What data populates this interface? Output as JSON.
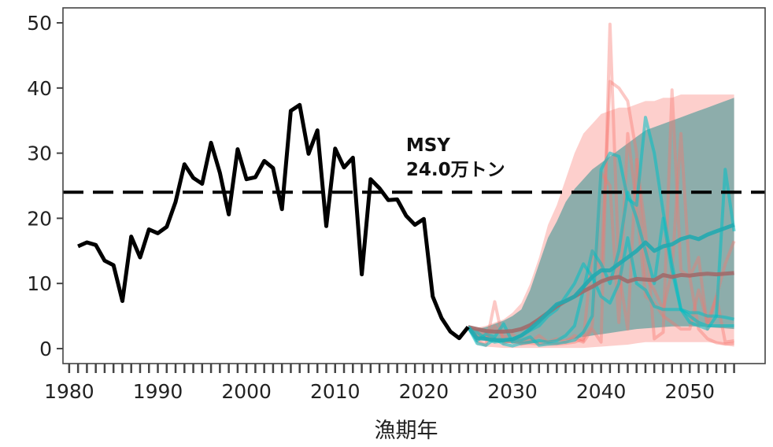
{
  "chart_data": {
    "type": "line",
    "title": "",
    "xlabel": "漁期年",
    "ylabel": "",
    "xlim": [
      1979.3,
      2058.5
    ],
    "ylim": [
      -2.3,
      52.3
    ],
    "xticks": [
      1980,
      1990,
      2000,
      2010,
      2020,
      2030,
      2040,
      2050
    ],
    "yticks": [
      0,
      10,
      20,
      30,
      40,
      50
    ],
    "grid": false,
    "msy": {
      "value": 24.0,
      "label_line1": "MSY",
      "label_line2": "24.0万トン",
      "color": "#000000"
    },
    "colors": {
      "historical": "#000000",
      "pink": "#f8766d",
      "teal": "#00bfc4",
      "band": "#5c9e9c",
      "brown": "#a06a6a",
      "teal_median": "#22aab0"
    },
    "historical": {
      "x": [
        1981,
        1982,
        1983,
        1984,
        1985,
        1986,
        1987,
        1988,
        1989,
        1990,
        1991,
        1992,
        1993,
        1994,
        1995,
        1996,
        1997,
        1998,
        1999,
        2000,
        2001,
        2002,
        2003,
        2004,
        2005,
        2006,
        2007,
        2008,
        2009,
        2010,
        2011,
        2012,
        2013,
        2014,
        2015,
        2016,
        2017,
        2018,
        2019,
        2020,
        2021,
        2022,
        2023,
        2024,
        2025
      ],
      "y": [
        15.7,
        16.3,
        15.9,
        13.5,
        12.8,
        7.3,
        17.2,
        14.0,
        18.3,
        17.7,
        18.7,
        22.5,
        28.3,
        26.2,
        25.3,
        31.6,
        27.0,
        20.6,
        30.6,
        26.0,
        26.3,
        28.8,
        27.7,
        21.4,
        36.5,
        37.4,
        29.9,
        33.5,
        18.8,
        30.7,
        27.8,
        29.3,
        11.4,
        26.0,
        24.6,
        22.8,
        22.9,
        20.4,
        19.0,
        19.9,
        8.0,
        4.7,
        2.6,
        1.6,
        3.3
      ]
    },
    "projection_x": [
      2025,
      2026,
      2027,
      2028,
      2029,
      2030,
      2031,
      2032,
      2033,
      2034,
      2035,
      2036,
      2037,
      2038,
      2039,
      2040,
      2041,
      2042,
      2043,
      2044,
      2045,
      2046,
      2047,
      2048,
      2049,
      2050,
      2051,
      2052,
      2053,
      2054,
      2055
    ],
    "pink_band": {
      "upper": [
        3.3,
        3.2,
        3.5,
        4.0,
        4.5,
        5.5,
        7.0,
        10.0,
        14.0,
        19.0,
        22.0,
        26.0,
        30.0,
        33.0,
        34.5,
        36.0,
        36.5,
        37.0,
        37.0,
        37.5,
        38.0,
        38.0,
        38.5,
        38.5,
        39.0,
        39.0,
        39.0,
        39.0,
        39.0,
        39.0,
        39.0
      ],
      "lower": [
        3.3,
        0.5,
        0.3,
        0.2,
        0.1,
        0.1,
        0.1,
        0.1,
        0.1,
        0.1,
        0.1,
        0.1,
        0.1,
        0.1,
        0.2,
        0.3,
        0.4,
        0.5,
        0.6,
        0.8,
        1.0,
        1.0,
        1.0,
        1.0,
        1.0,
        1.0,
        1.0,
        1.0,
        0.8,
        0.5,
        0.3
      ]
    },
    "teal_band": {
      "upper": [
        3.3,
        3.0,
        3.3,
        3.8,
        4.3,
        5.0,
        6.0,
        9.0,
        13.0,
        17.0,
        19.5,
        22.5,
        24.5,
        26.0,
        27.5,
        28.5,
        29.5,
        30.5,
        31.5,
        32.5,
        33.5,
        34.0,
        34.5,
        35.0,
        35.5,
        36.0,
        36.5,
        37.0,
        37.5,
        38.0,
        38.5
      ],
      "lower": [
        3.3,
        1.6,
        1.2,
        1.0,
        0.9,
        0.8,
        0.8,
        0.8,
        0.9,
        1.0,
        1.1,
        1.3,
        1.5,
        1.8,
        2.0,
        2.2,
        2.4,
        2.6,
        2.8,
        3.0,
        3.1,
        3.2,
        3.3,
        3.4,
        3.4,
        3.4,
        3.4,
        3.3,
        3.2,
        3.1,
        3.0
      ]
    },
    "series": [
      {
        "group": "pink",
        "role": "median",
        "values": [
          3.3,
          3.0,
          2.7,
          2.6,
          2.6,
          2.7,
          3.0,
          3.6,
          4.5,
          5.5,
          6.5,
          7.3,
          8.0,
          8.8,
          9.5,
          10.3,
          10.8,
          11.0,
          10.3,
          10.7,
          10.6,
          10.5,
          11.3,
          11.0,
          11.3,
          11.2,
          11.4,
          11.5,
          11.4,
          11.5,
          11.6
        ]
      },
      {
        "group": "teal",
        "role": "median",
        "values": [
          3.3,
          1.6,
          1.5,
          1.3,
          1.3,
          1.4,
          2.0,
          3.0,
          4.2,
          5.5,
          6.8,
          7.3,
          8.0,
          9.5,
          11.0,
          12.0,
          12.0,
          13.0,
          14.0,
          15.0,
          16.3,
          15.0,
          15.7,
          16.0,
          16.8,
          17.2,
          16.8,
          17.5,
          18.0,
          18.5,
          19.0
        ]
      },
      {
        "group": "pink",
        "role": "trajectory",
        "values": [
          3.3,
          1.2,
          0.5,
          7.2,
          0.8,
          1.5,
          0.7,
          1.0,
          2.0,
          1.0,
          0.8,
          1.2,
          1.5,
          1.0,
          3.0,
          1.0,
          49.8,
          12.0,
          3.0,
          29.0,
          18.0,
          1.5,
          2.5,
          39.7,
          12.0,
          11.0,
          3.0,
          1.5,
          0.9,
          0.7,
          0.8
        ]
      },
      {
        "group": "pink",
        "role": "trajectory",
        "values": [
          3.3,
          2.2,
          1.5,
          3.5,
          1.8,
          2.2,
          1.2,
          1.5,
          0.8,
          1.0,
          1.5,
          1.0,
          2.0,
          1.2,
          15.0,
          12.0,
          41.0,
          40.0,
          38.0,
          30.0,
          11.0,
          9.0,
          6.0,
          12.0,
          33.0,
          11.0,
          14.0,
          3.0,
          8.0,
          13.0,
          16.5
        ]
      },
      {
        "group": "pink",
        "role": "trajectory",
        "values": [
          3.3,
          2.8,
          2.0,
          1.5,
          1.2,
          1.0,
          0.8,
          0.8,
          0.7,
          0.7,
          0.7,
          0.8,
          1.0,
          1.5,
          3.5,
          27.0,
          25.0,
          4.0,
          33.0,
          22.0,
          8.0,
          7.0,
          5.0,
          4.0,
          3.0,
          3.0,
          9.0,
          4.0,
          8.0,
          1.0,
          1.2
        ]
      },
      {
        "group": "teal",
        "role": "trajectory",
        "values": [
          3.3,
          1.2,
          2.2,
          1.8,
          3.8,
          1.0,
          1.3,
          1.8,
          0.5,
          0.7,
          0.8,
          1.0,
          1.3,
          2.5,
          5.0,
          27.5,
          30.0,
          29.5,
          23.0,
          22.0,
          35.5,
          30.0,
          21.0,
          13.0,
          6.0,
          4.0,
          3.5,
          3.0,
          5.0,
          27.5,
          18.0
        ]
      },
      {
        "group": "teal",
        "role": "trajectory",
        "values": [
          3.3,
          0.8,
          0.5,
          1.5,
          0.7,
          0.4,
          0.8,
          1.0,
          1.2,
          1.0,
          1.2,
          2.0,
          3.5,
          9.0,
          15.0,
          13.0,
          10.0,
          15.0,
          24.0,
          20.0,
          15.0,
          10.0,
          20.0,
          12.0,
          6.0,
          5.0,
          4.0,
          3.5,
          3.5,
          3.5,
          3.5
        ]
      },
      {
        "group": "teal",
        "role": "trajectory",
        "values": [
          3.3,
          2.5,
          1.5,
          1.0,
          1.2,
          1.5,
          2.0,
          2.8,
          3.5,
          5.0,
          6.0,
          8.0,
          10.0,
          13.0,
          11.0,
          8.0,
          7.0,
          10.0,
          17.0,
          10.0,
          9.0,
          6.5,
          6.0,
          6.0,
          6.0,
          5.5,
          5.5,
          5.0,
          5.0,
          4.8,
          4.5
        ]
      }
    ]
  }
}
